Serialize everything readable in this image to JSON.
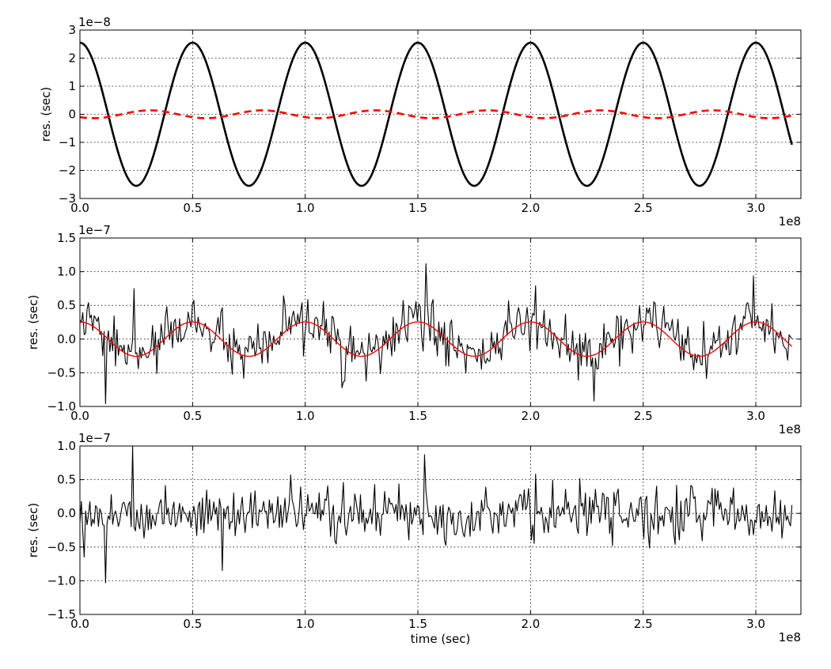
{
  "chart_data": [
    {
      "type": "line",
      "panel": "top",
      "ylabel": "res. (sec)",
      "xlabel": "",
      "y_offset_label": "1e−8",
      "x_offset_label": "1e8",
      "xlim": [
        0.0,
        3.2
      ],
      "ylim": [
        -3,
        3
      ],
      "x_ticks": [
        "0.0",
        "0.5",
        "1.0",
        "1.5",
        "2.0",
        "2.5",
        "3.0"
      ],
      "y_ticks": [
        "−3",
        "−2",
        "−1",
        "0",
        "1",
        "2",
        "3"
      ],
      "grid": true,
      "series": [
        {
          "style": "solid",
          "color": "#000000",
          "line_width": 2.6,
          "kind": "sinusoid",
          "amplitude": 2.55,
          "period": 0.5,
          "peak_at": 0.0,
          "x_end": 3.16,
          "samples": 600
        },
        {
          "style": "dashed",
          "color": "#ff0000",
          "line_width": 2.6,
          "kind": "sinusoid",
          "amplitude": 0.14,
          "period": 0.5,
          "peak_at": 0.31,
          "x_end": 3.16,
          "samples": 600
        }
      ]
    },
    {
      "type": "line",
      "panel": "middle",
      "ylabel": "res. (sec)",
      "xlabel": "",
      "y_offset_label": "1e−7",
      "x_offset_label": "1e8",
      "xlim": [
        0.0,
        3.2
      ],
      "ylim": [
        -1.0,
        1.5
      ],
      "x_ticks": [
        "0.0",
        "0.5",
        "1.0",
        "1.5",
        "2.0",
        "2.5",
        "3.0"
      ],
      "y_ticks": [
        "−1.0",
        "−0.5",
        "0.0",
        "0.5",
        "1.0",
        "1.5"
      ],
      "grid": true,
      "series": [
        {
          "style": "solid",
          "color": "#000000",
          "line_width": 1.1,
          "kind": "noisy_sinusoid",
          "amplitude": 0.255,
          "period": 0.5,
          "peak_at": 0.0,
          "noise_std": 0.3,
          "x_end": 3.16,
          "samples": 500,
          "extremes": [
            {
              "x": 0.115,
              "y": -0.96
            },
            {
              "x": 1.535,
              "y": 1.12
            },
            {
              "x": 2.28,
              "y": -0.92
            },
            {
              "x": 0.24,
              "y": 0.75
            }
          ]
        },
        {
          "style": "solid",
          "color": "#ff0000",
          "line_width": 1.4,
          "kind": "sinusoid",
          "amplitude": 0.255,
          "period": 0.5,
          "peak_at": 0.0,
          "x_end": 3.16,
          "samples": 600
        }
      ]
    },
    {
      "type": "line",
      "panel": "bottom",
      "ylabel": "res. (sec)",
      "xlabel": "time (sec)",
      "y_offset_label": "1e−7",
      "x_offset_label": "1e8",
      "xlim": [
        0.0,
        3.2
      ],
      "ylim": [
        -1.5,
        1.0
      ],
      "x_ticks": [
        "0.0",
        "0.5",
        "1.0",
        "1.5",
        "2.0",
        "2.5",
        "3.0"
      ],
      "y_ticks": [
        "−1.5",
        "−1.0",
        "−0.5",
        "0.0",
        "0.5",
        "1.0"
      ],
      "grid": true,
      "series": [
        {
          "style": "solid",
          "color": "#000000",
          "line_width": 1.1,
          "kind": "noise",
          "noise_std": 0.3,
          "x_end": 3.16,
          "samples": 500,
          "extremes": [
            {
              "x": 0.115,
              "y": -1.03
            },
            {
              "x": 0.235,
              "y": 1.0
            },
            {
              "x": 0.63,
              "y": -0.85
            },
            {
              "x": 1.53,
              "y": 0.87
            }
          ]
        }
      ]
    }
  ]
}
